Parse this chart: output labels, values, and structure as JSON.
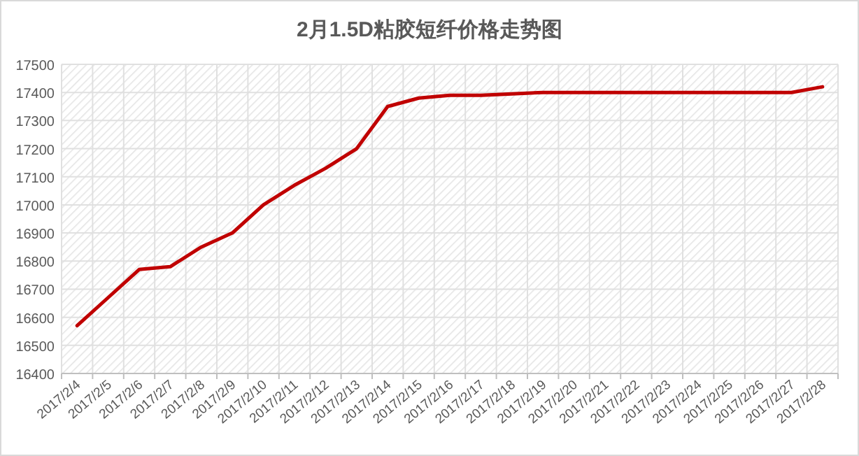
{
  "chart_data": {
    "type": "line",
    "title": "2月1.5D粘胶短纤价格走势图",
    "categories": [
      "2017/2/4",
      "2017/2/5",
      "2017/2/6",
      "2017/2/7",
      "2017/2/8",
      "2017/2/9",
      "2017/2/10",
      "2017/2/11",
      "2017/2/12",
      "2017/2/13",
      "2017/2/14",
      "2017/2/15",
      "2017/2/16",
      "2017/2/17",
      "2017/2/18",
      "2017/2/19",
      "2017/2/20",
      "2017/2/21",
      "2017/2/22",
      "2017/2/23",
      "2017/2/24",
      "2017/2/25",
      "2017/2/26",
      "2017/2/27",
      "2017/2/28"
    ],
    "series": [
      {
        "color": "#c00000",
        "values": [
          16570,
          16670,
          16770,
          16780,
          16850,
          16900,
          17000,
          17070,
          17130,
          17200,
          17350,
          17380,
          17390,
          17390,
          17395,
          17400,
          17400,
          17400,
          17400,
          17400,
          17400,
          17400,
          17400,
          17400,
          17420
        ]
      }
    ],
    "ylim": [
      16400,
      17500
    ],
    "yticks": [
      16400,
      16500,
      16600,
      16700,
      16800,
      16900,
      17000,
      17100,
      17200,
      17300,
      17400,
      17500
    ],
    "grid": true,
    "marker": "none",
    "line_style": "solid"
  }
}
